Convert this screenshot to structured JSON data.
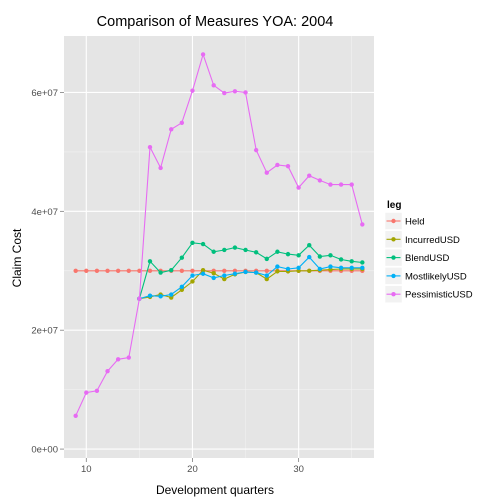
{
  "chart_data": {
    "type": "line",
    "title": "Comparison of Measures  YOA: 2004",
    "xlabel": "Development quarters",
    "ylabel": "Claim Cost",
    "xlim": [
      7.9,
      37.1
    ],
    "ylim": [
      -1500000.0,
      69500000.0
    ],
    "x_ticks": [
      10,
      20,
      30
    ],
    "x_tick_labels": [
      "10",
      "20",
      "30"
    ],
    "y_ticks": [
      0,
      20000000,
      40000000,
      60000000
    ],
    "y_tick_labels": [
      "0e+00",
      "2e+07",
      "4e+07",
      "6e+07"
    ],
    "grid": true,
    "legend_title": "leg",
    "legend_position": "right",
    "series": [
      {
        "name": "Held",
        "color": "#F8766D",
        "x": [
          9,
          10,
          11,
          12,
          13,
          14,
          15,
          16,
          17,
          18,
          19,
          20,
          21,
          22,
          23,
          24,
          25,
          26,
          27,
          28,
          29,
          30,
          31,
          32,
          33,
          34,
          35,
          36
        ],
        "y": [
          30000000,
          30000000,
          30000000,
          30000000,
          30000000,
          30000000,
          30000000,
          30000000,
          30000000,
          30000000,
          30000000,
          30000000,
          30000000,
          30000000,
          30000000,
          30000000,
          30000000,
          30000000,
          30000000,
          30000000,
          30000000,
          30000000,
          30000000,
          30000000,
          30000000,
          30000000,
          30000000,
          30000000
        ]
      },
      {
        "name": "IncurredUSD",
        "color": "#A3A500",
        "x": [
          15,
          16,
          17,
          18,
          19,
          20,
          21,
          22,
          23,
          24,
          25,
          26,
          27,
          28,
          29,
          30,
          31,
          32,
          33,
          34,
          35,
          36
        ],
        "y": [
          25300000,
          25600000,
          26000000,
          25500000,
          26800000,
          28200000,
          30100000,
          29600000,
          28600000,
          29400000,
          29800000,
          29700000,
          28600000,
          29900000,
          29900000,
          30000000,
          30000000,
          30100000,
          30200000,
          30300000,
          30300000,
          30300000
        ]
      },
      {
        "name": "BlendUSD",
        "color": "#00BF7D",
        "x": [
          15,
          16,
          17,
          18,
          19,
          20,
          21,
          22,
          23,
          24,
          25,
          26,
          27,
          28,
          29,
          30,
          31,
          32,
          33,
          34,
          35,
          36
        ],
        "y": [
          25300000,
          31600000,
          29700000,
          30100000,
          32200000,
          34700000,
          34500000,
          33200000,
          33500000,
          33900000,
          33500000,
          33100000,
          32000000,
          33200000,
          32800000,
          32600000,
          34300000,
          32400000,
          32600000,
          31900000,
          31600000,
          31400000
        ]
      },
      {
        "name": "MostlikelyUSD",
        "color": "#00B0F6",
        "x": [
          15,
          16,
          17,
          18,
          19,
          20,
          21,
          22,
          23,
          24,
          25,
          26,
          27,
          28,
          29,
          30,
          31,
          32,
          33,
          34,
          35,
          36
        ],
        "y": [
          25300000,
          25800000,
          25700000,
          26000000,
          27300000,
          29200000,
          29500000,
          28800000,
          29200000,
          29500000,
          29800000,
          29700000,
          29200000,
          30700000,
          30300000,
          30500000,
          32300000,
          30300000,
          30700000,
          30500000,
          30500000,
          30500000
        ]
      },
      {
        "name": "PessimisticUSD",
        "color": "#E76BF3",
        "x": [
          9,
          10,
          11,
          12,
          13,
          14,
          15,
          16,
          17,
          18,
          19,
          20,
          21,
          22,
          23,
          24,
          25,
          26,
          27,
          28,
          29,
          30,
          31,
          32,
          33,
          34,
          35,
          36
        ],
        "y": [
          5600000,
          9500000,
          9800000,
          13100000,
          15100000,
          15400000,
          25300000,
          50800000,
          47300000,
          53800000,
          54900000,
          60300000,
          66400000,
          61200000,
          59900000,
          60200000,
          60000000,
          50300000,
          46500000,
          47800000,
          47600000,
          44000000,
          46000000,
          45200000,
          44500000,
          44500000,
          44500000,
          37800000
        ]
      }
    ]
  }
}
